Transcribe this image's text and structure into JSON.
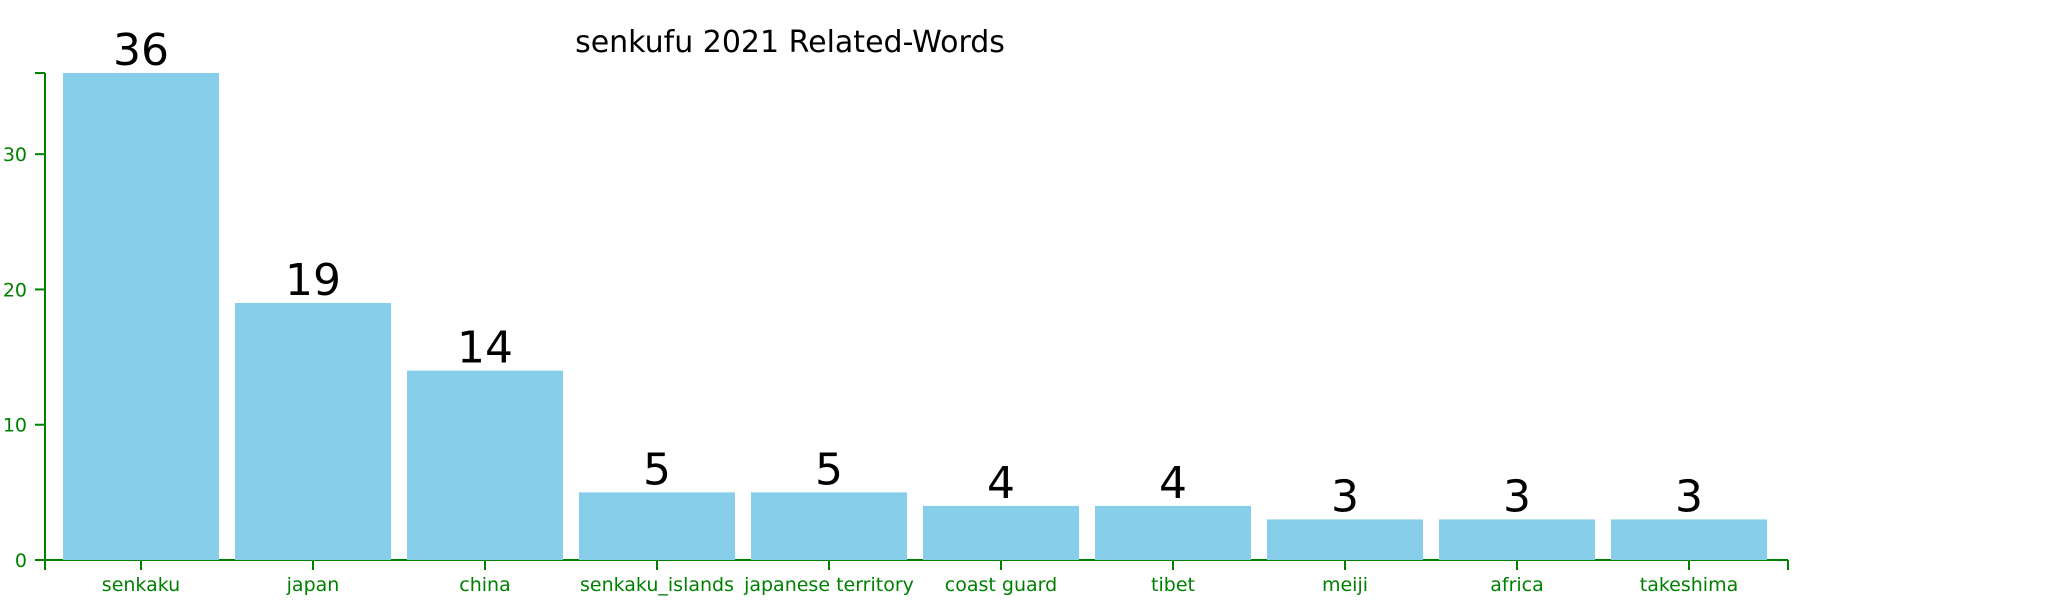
{
  "chart_data": {
    "type": "bar",
    "title": "senkufu 2021 Related-Words",
    "xlabel": "",
    "ylabel": "",
    "categories": [
      "senkaku",
      "japan",
      "china",
      "senkaku_islands",
      "japanese territory",
      "coast guard",
      "tibet",
      "meiji",
      "africa",
      "takeshima"
    ],
    "values": [
      36,
      19,
      14,
      5,
      5,
      4,
      4,
      3,
      3,
      3
    ],
    "ylim": [
      0,
      36
    ],
    "yticks": [
      0,
      10,
      20,
      30
    ],
    "grid": false,
    "data_labels": true,
    "colors": {
      "bar": "#87CEEB",
      "axis": "#008000",
      "text": "#000000"
    }
  }
}
